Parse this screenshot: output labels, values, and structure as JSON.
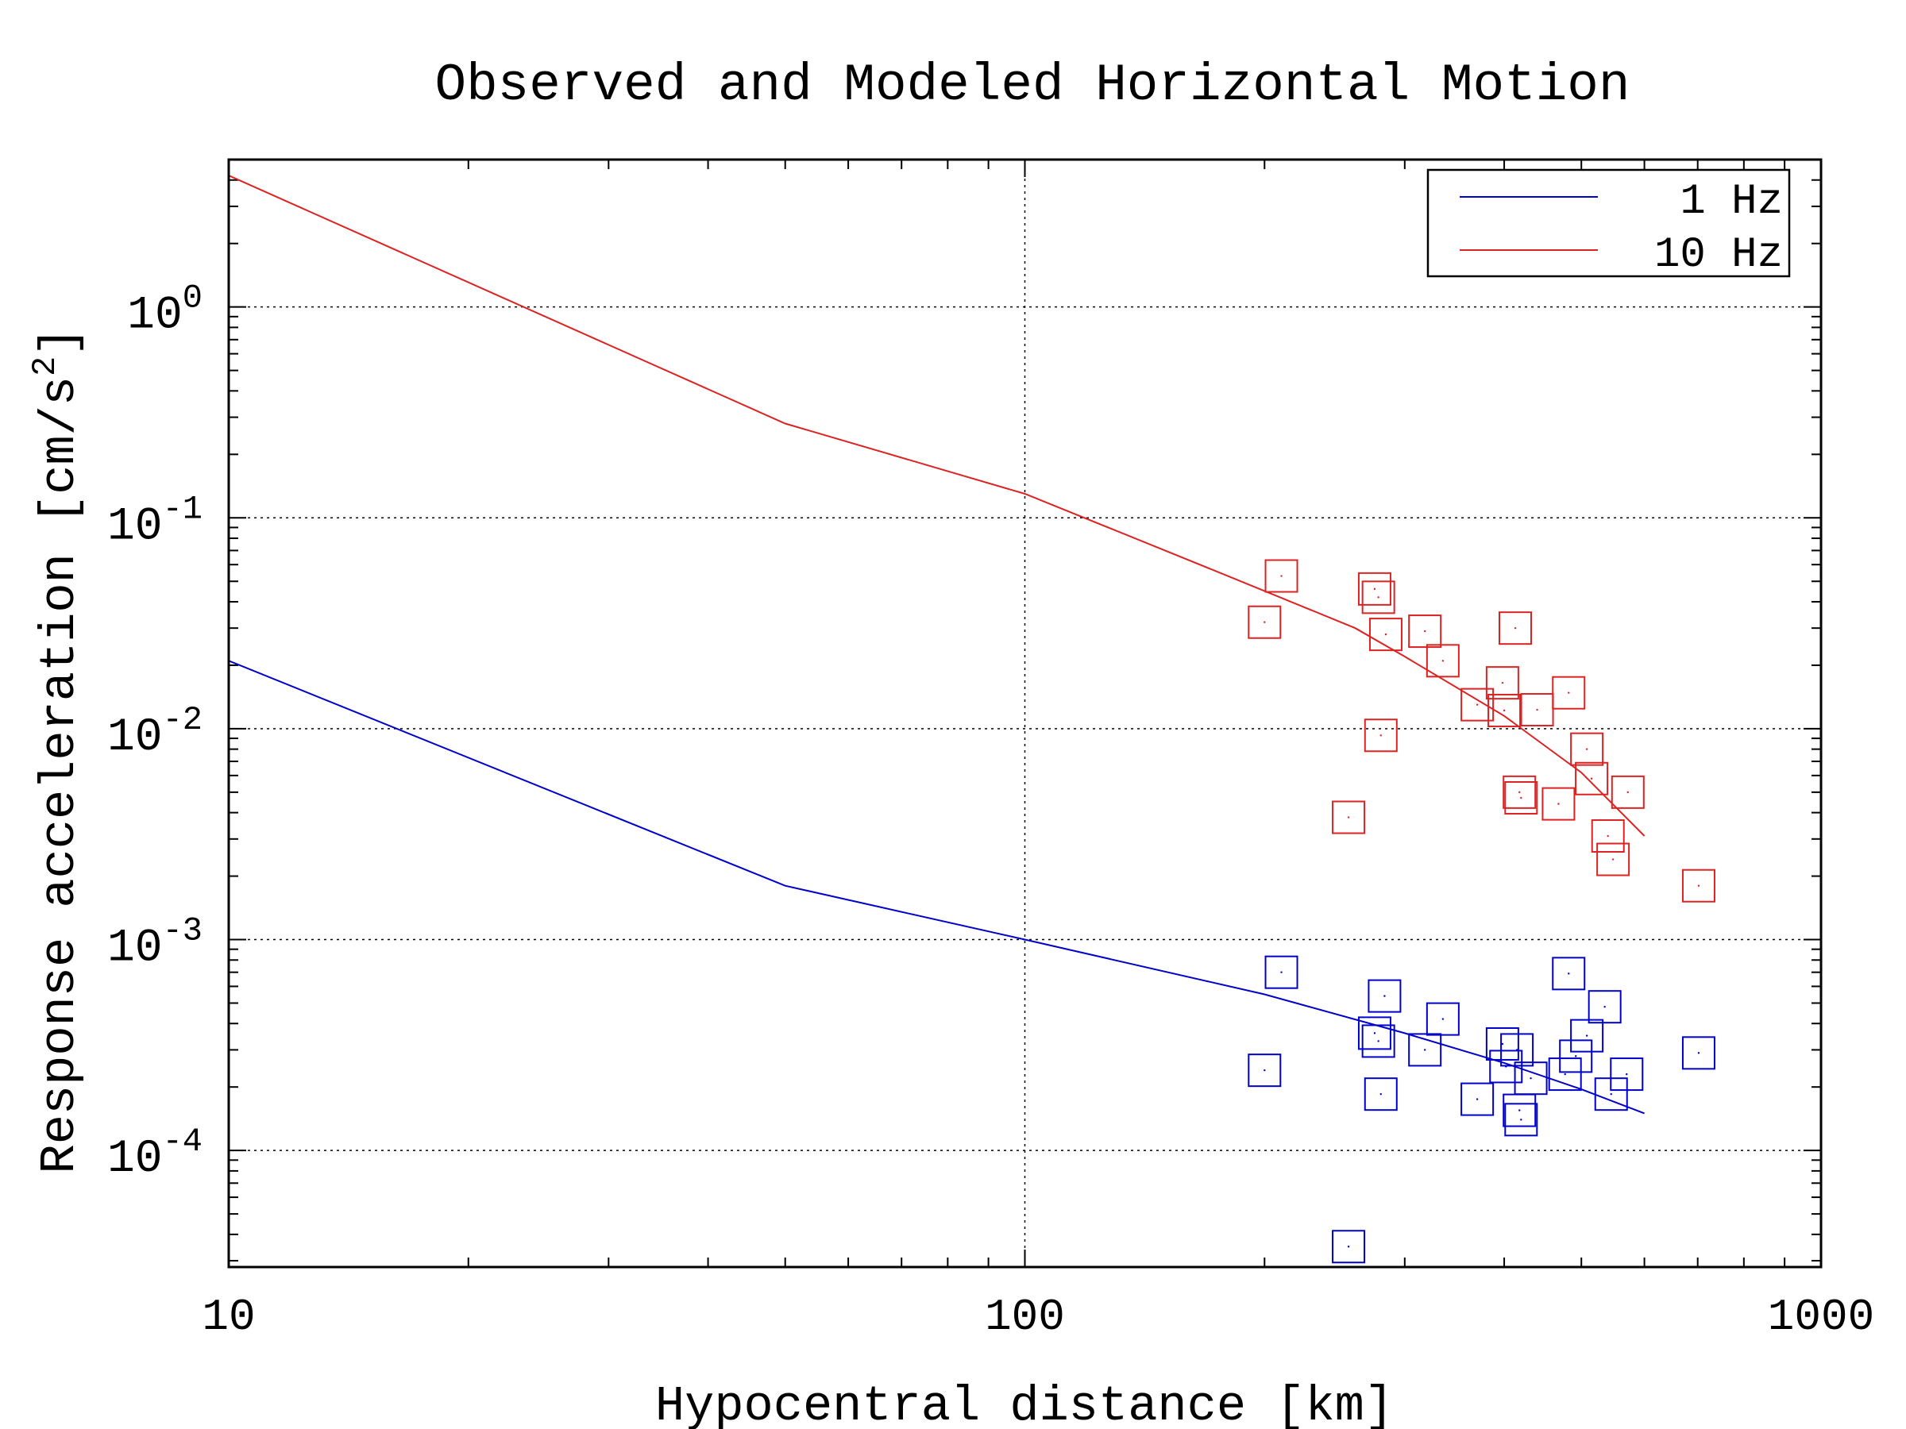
{
  "chart_data": {
    "type": "scatter",
    "title": "Observed and Modeled Horizontal Motion",
    "xlabel": "Hypocentral distance [km]",
    "ylabel": "Response acceleration [cm/s²]",
    "ylabel_parts": {
      "main": "Response acceleration [cm/s",
      "sup": "2",
      "close": "]"
    },
    "x_scale": "log",
    "y_scale": "log",
    "xlim": [
      10,
      1000
    ],
    "ylim": [
      2.8e-05,
      5
    ],
    "x_ticks": [
      {
        "value": 10,
        "label": "10"
      },
      {
        "value": 100,
        "label": "100"
      },
      {
        "value": 1000,
        "label": "1000"
      }
    ],
    "y_ticks": [
      {
        "value": 1,
        "base": "10",
        "exp": "0"
      },
      {
        "value": 0.1,
        "base": "10",
        "exp": "-1"
      },
      {
        "value": 0.01,
        "base": "10",
        "exp": "-2"
      },
      {
        "value": 0.001,
        "base": "10",
        "exp": "-3"
      },
      {
        "value": 0.0001,
        "base": "10",
        "exp": "-4"
      }
    ],
    "grid": true,
    "legend_position": "top-right",
    "series": [
      {
        "name": "1 Hz",
        "color": "#0000cc",
        "model_line": [
          [
            10,
            0.021
          ],
          [
            50,
            0.0018
          ],
          [
            100,
            0.001
          ],
          [
            200,
            0.00055
          ],
          [
            300,
            0.00036
          ],
          [
            400,
            0.00026
          ],
          [
            500,
            0.000195
          ],
          [
            600,
            0.00015
          ]
        ],
        "observations": [
          [
            200,
            0.00024
          ],
          [
            210,
            0.0007
          ],
          [
            255,
            3.5e-05
          ],
          [
            275,
            0.00036
          ],
          [
            278,
            0.00033
          ],
          [
            280,
            0.000185
          ],
          [
            283,
            0.00054
          ],
          [
            318,
            0.0003
          ],
          [
            335,
            0.00042
          ],
          [
            370,
            0.000175
          ],
          [
            398,
            0.00032
          ],
          [
            402,
            0.00025
          ],
          [
            415,
            0.0003
          ],
          [
            418,
            0.000155
          ],
          [
            420,
            0.00014
          ],
          [
            432,
            0.00022
          ],
          [
            477,
            0.00023
          ],
          [
            482,
            0.00069
          ],
          [
            492,
            0.00028
          ],
          [
            508,
            0.00035
          ],
          [
            535,
            0.00048
          ],
          [
            545,
            0.000185
          ],
          [
            570,
            0.00023
          ],
          [
            702,
            0.00029
          ]
        ]
      },
      {
        "name": "10 Hz",
        "color": "#dd2222",
        "model_line": [
          [
            10,
            4.2
          ],
          [
            50,
            0.28
          ],
          [
            100,
            0.13
          ],
          [
            150,
            0.07
          ],
          [
            200,
            0.045
          ],
          [
            260,
            0.03
          ],
          [
            300,
            0.022
          ],
          [
            400,
            0.0115
          ],
          [
            500,
            0.0062
          ],
          [
            600,
            0.0031
          ]
        ],
        "observations": [
          [
            200,
            0.032
          ],
          [
            210,
            0.053
          ],
          [
            255,
            0.0038
          ],
          [
            275,
            0.046
          ],
          [
            278,
            0.042
          ],
          [
            280,
            0.0093
          ],
          [
            284,
            0.028
          ],
          [
            318,
            0.029
          ],
          [
            335,
            0.021
          ],
          [
            370,
            0.013
          ],
          [
            398,
            0.0165
          ],
          [
            400,
            0.0122
          ],
          [
            413,
            0.03
          ],
          [
            418,
            0.005
          ],
          [
            420,
            0.0047
          ],
          [
            440,
            0.0123
          ],
          [
            468,
            0.0044
          ],
          [
            482,
            0.0148
          ],
          [
            508,
            0.008
          ],
          [
            515,
            0.0058
          ],
          [
            540,
            0.0031
          ],
          [
            548,
            0.0024
          ],
          [
            572,
            0.005
          ],
          [
            702,
            0.0018
          ]
        ]
      }
    ]
  }
}
